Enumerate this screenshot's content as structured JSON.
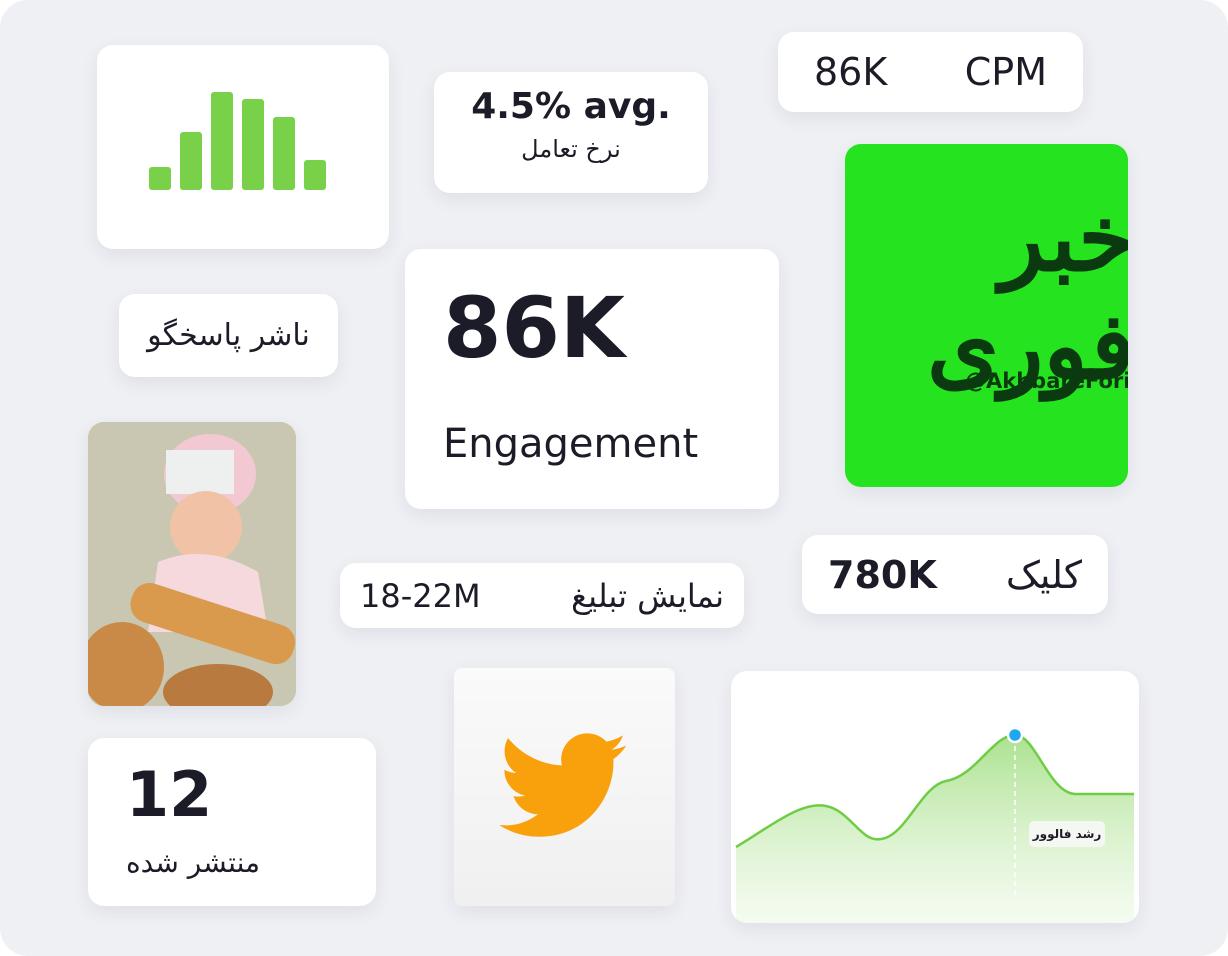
{
  "bar_card": {},
  "engagement_rate": {
    "value": "4.5% avg.",
    "label": "نرخ تعامل"
  },
  "cpm": {
    "value": "86K",
    "label": "CPM"
  },
  "channel_logo": {
    "title": "خبر فوری",
    "handle": "@AkhbareFori"
  },
  "publisher": {
    "label": "ناشر پاسخگو"
  },
  "engagement": {
    "value": "86K",
    "label": "Engagement"
  },
  "clicks": {
    "value": "780K",
    "label": "کلیک"
  },
  "impressions": {
    "value": "18-22M",
    "label": "نمایش تبلیغ"
  },
  "published": {
    "value": "12",
    "label": "منتشر شده"
  },
  "follower_chart": {
    "label": "رشد فالوور"
  }
}
